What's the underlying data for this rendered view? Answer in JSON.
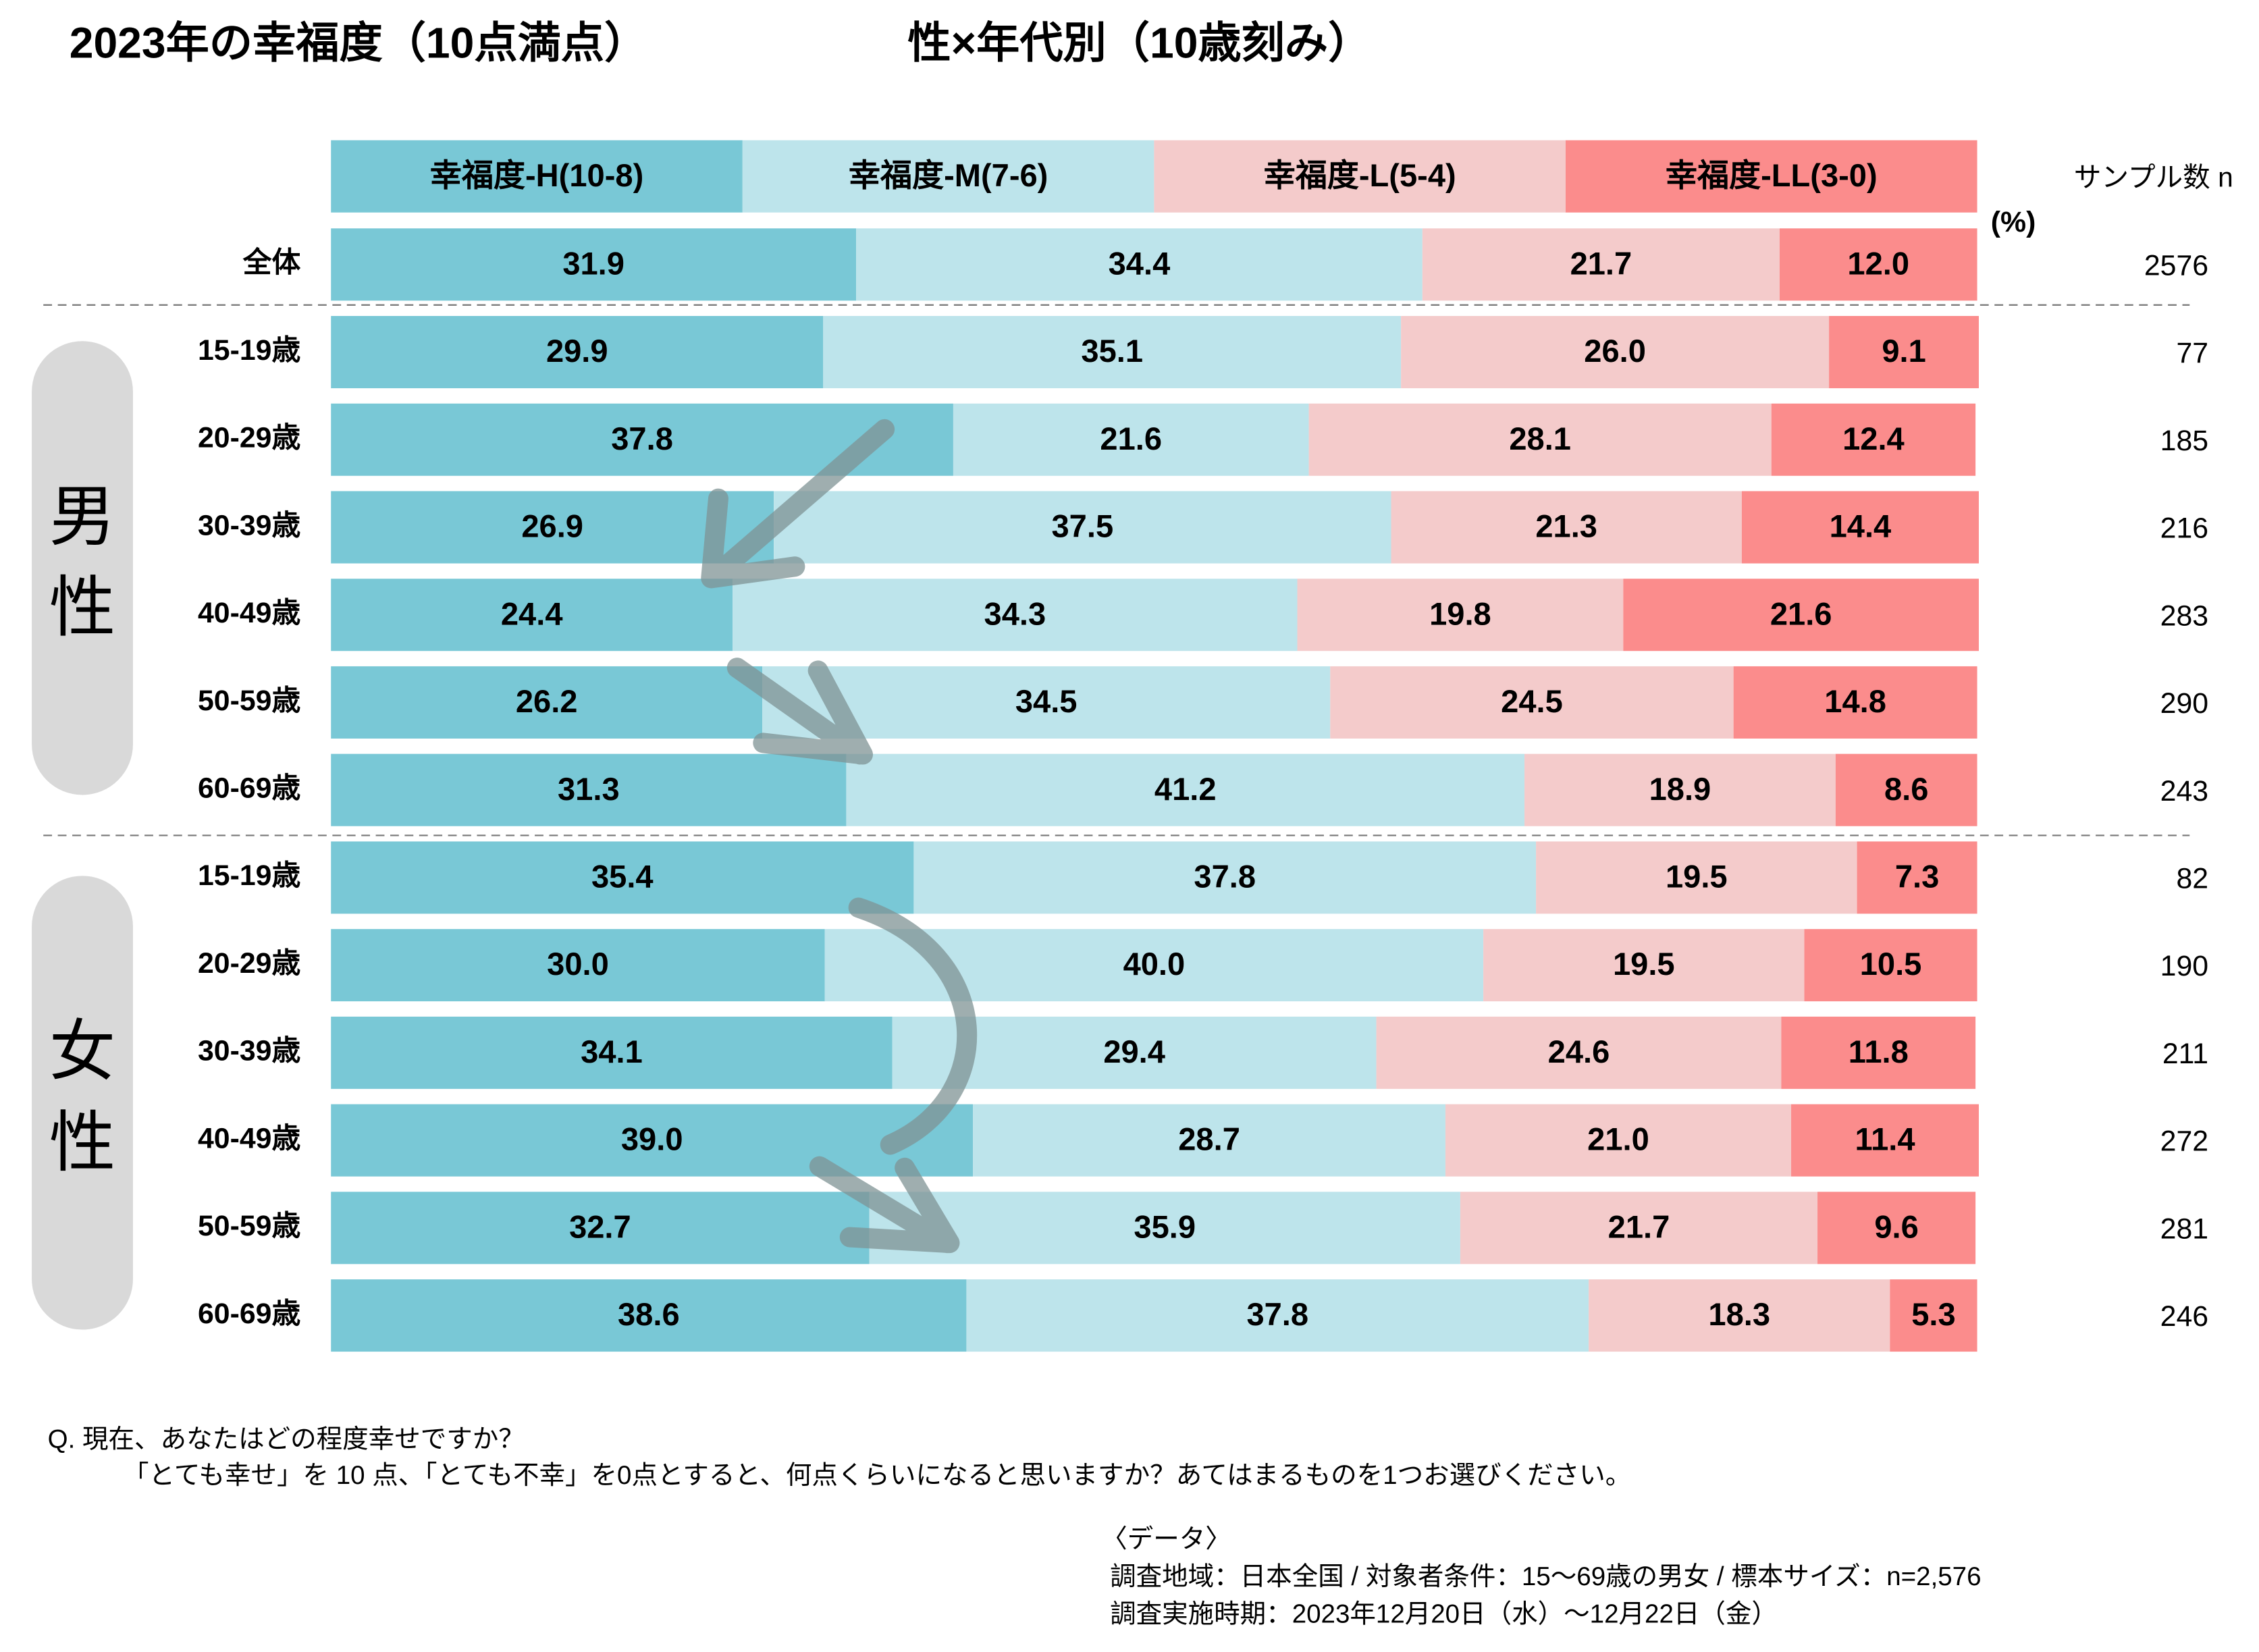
{
  "chart_data": {
    "type": "stacked-bar-horizontal",
    "title": "2023年の幸福度（10点満点）",
    "subtitle": "性×年代別（10歳刻み）",
    "unit_label": "(%)",
    "xlim": [
      0,
      100
    ],
    "groups": [
      "男性",
      "女性"
    ],
    "categories": [
      "全体",
      "15-19歳",
      "20-29歳",
      "30-39歳",
      "40-49歳",
      "50-59歳",
      "60-69歳",
      "15-19歳",
      "20-29歳",
      "30-39歳",
      "40-49歳",
      "50-59歳",
      "60-69歳"
    ],
    "series": [
      {
        "name": "幸福度-H(10-8)",
        "color": "#79c8d6",
        "values": [
          31.9,
          29.9,
          37.8,
          26.9,
          24.4,
          26.2,
          31.3,
          35.4,
          30.0,
          34.1,
          39.0,
          32.7,
          38.6
        ],
        "value_labels": [
          "31.9",
          "29.9",
          "37.8",
          "26.9",
          "24.4",
          "26.2",
          "31.3",
          "35.4",
          "30.0",
          "34.1",
          "39.0",
          "32.7",
          "38.6"
        ]
      },
      {
        "name": "幸福度-M(7-6)",
        "color": "#bde4eb",
        "values": [
          34.4,
          35.1,
          21.6,
          37.5,
          34.3,
          34.5,
          41.2,
          37.8,
          40.0,
          29.4,
          28.7,
          35.9,
          37.8
        ],
        "value_labels": [
          "34.4",
          "35.1",
          "21.6",
          "37.5",
          "34.3",
          "34.5",
          "41.2",
          "37.8",
          "40.0",
          "29.4",
          "28.7",
          "35.9",
          "37.8"
        ]
      },
      {
        "name": "幸福度-L(5-4)",
        "color": "#f4cbcb",
        "values": [
          21.7,
          26.0,
          28.1,
          21.3,
          19.8,
          24.5,
          18.9,
          19.5,
          19.5,
          24.6,
          21.0,
          21.7,
          18.3
        ],
        "value_labels": [
          "21.7",
          "26.0",
          "28.1",
          "21.3",
          "19.8",
          "24.5",
          "18.9",
          "19.5",
          "19.5",
          "24.6",
          "21.0",
          "21.7",
          "18.3"
        ]
      },
      {
        "name": "幸福度-LL(3-0)",
        "color": "#fb8c8c",
        "values": [
          12.0,
          9.1,
          12.4,
          14.4,
          21.6,
          14.8,
          8.6,
          7.3,
          10.5,
          11.8,
          11.4,
          9.6,
          5.3
        ],
        "value_labels": [
          "12.0",
          "9.1",
          "12.4",
          "14.4",
          "21.6",
          "14.8",
          "8.6",
          "7.3",
          "10.5",
          "11.8",
          "11.4",
          "9.6",
          "5.3"
        ]
      }
    ],
    "sample_n": {
      "label": "サンプル数 n",
      "values": [
        2576,
        77,
        185,
        216,
        283,
        290,
        243,
        82,
        190,
        211,
        272,
        281,
        246
      ]
    },
    "notes": {
      "question": [
        "Q. 現在、あなたはどの程度幸せですか？",
        "「とても幸せ」を 10 点、「とても不幸」を0点とすると、何点くらいになると思いますか？あてはまるものを1つお選びください。"
      ],
      "data": [
        "〈データ〉",
        "調査地域：日本全国 / 対象者条件：15～69歳の男女 / 標本サイズ：n=2,576",
        "調査実施時期：2023年12月20日（水）～12月22日（金）"
      ]
    }
  }
}
